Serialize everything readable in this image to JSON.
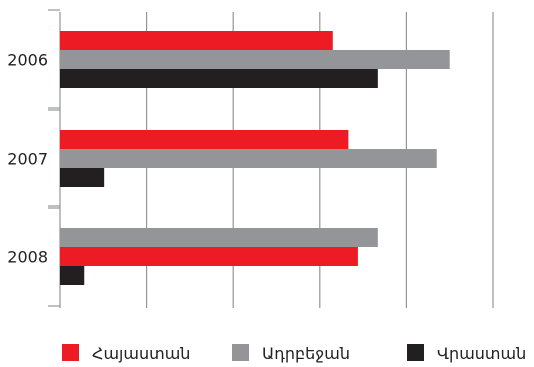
{
  "chart_data": {
    "type": "bar",
    "orientation": "horizontal",
    "categories": [
      "2006",
      "2007",
      "2008"
    ],
    "series": [
      {
        "name": "Հայաստան",
        "color": "#ed1c24",
        "values": [
          315,
          333,
          344
        ]
      },
      {
        "name": "Ադրբեջան",
        "color": "#939598",
        "values": [
          450,
          435,
          367
        ]
      },
      {
        "name": "Վրաստան",
        "color": "#231f20",
        "values": [
          367,
          51,
          28
        ]
      }
    ],
    "bar_order": [
      [
        "Հայաստան",
        "Ադրբեջան",
        "Վրաստան"
      ],
      [
        "Հայաստան",
        "Ադրբեջան",
        "Վրաստան"
      ],
      [
        "Ադրբեջան",
        "Հայաստան",
        "Վրաստան"
      ]
    ],
    "xlim": [
      0,
      500
    ],
    "x_gridlines": [
      0,
      100,
      200,
      300,
      400,
      500
    ],
    "x_tick_labels_visible": false,
    "grid": true,
    "legend_position": "bottom"
  }
}
